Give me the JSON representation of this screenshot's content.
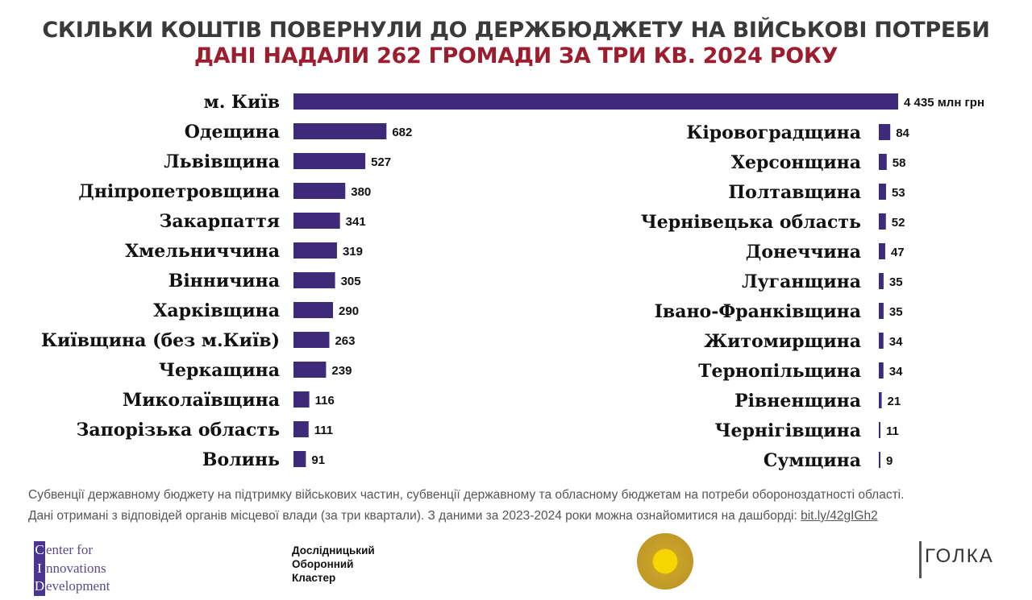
{
  "header": {
    "title": "СКІЛЬКИ КОШТІВ ПОВЕРНУЛИ ДО ДЕРЖБЮДЖЕТУ НА ВІЙСЬКОВІ ПОТРЕБИ",
    "subtitle": "ДАНІ НАДАЛИ 262 ГРОМАДИ ЗА ТРИ КВ. 2024 РОКУ"
  },
  "chart_data": {
    "type": "bar",
    "orientation": "horizontal",
    "unit": "млн грн",
    "bar_color": "#3d2a78",
    "categories": [
      "м. Київ",
      "Одещина",
      "Львівщина",
      "Дніпропетровщина",
      "Закарпаття",
      "Хмельниччина",
      "Вінничина",
      "Харківщина",
      "Київщина (без м.Київ)",
      "Черкащина",
      "Миколаївщина",
      "Запорізька область",
      "Волинь",
      "Кіровоградщина",
      "Херсонщина",
      "Полтавщина",
      "Чернівецька область",
      "Донеччина",
      "Луганщина",
      "Івано-Франківщина",
      "Житомирщина",
      "Тернопільщина",
      "Рівненщина",
      "Чернігівщина",
      "Сумщина"
    ],
    "values": [
      4435,
      682,
      527,
      380,
      341,
      319,
      305,
      290,
      263,
      239,
      116,
      111,
      91,
      84,
      58,
      53,
      52,
      47,
      35,
      35,
      34,
      34,
      21,
      11,
      9
    ],
    "value_labels": [
      "4 435",
      "682",
      "527",
      "380",
      "341",
      "319",
      "305",
      "290",
      "263",
      "239",
      "116",
      "111",
      "91",
      "84",
      "58",
      "53",
      "52",
      "47",
      "35",
      "35",
      "34",
      "34",
      "21",
      "11",
      "9"
    ]
  },
  "footer": {
    "note1": "Субвенції державному бюджету на підтримку військових частин, субвенції державному та обласному бюджетам на потреби обороноздатності області.",
    "note2": "Дані отримані з відповідей органів місцевої влади (за три квартали). З даними за 2023-2024 роки можна ознайомитися на дашборді: ",
    "link": "bit.ly/42gIGh2",
    "logo_cid": [
      "Center for",
      "Innovations",
      "Development"
    ],
    "logo_dok": [
      "Дослідницький",
      "Оборонний",
      "Кластер"
    ],
    "logo_golka": "ГОЛКА"
  }
}
